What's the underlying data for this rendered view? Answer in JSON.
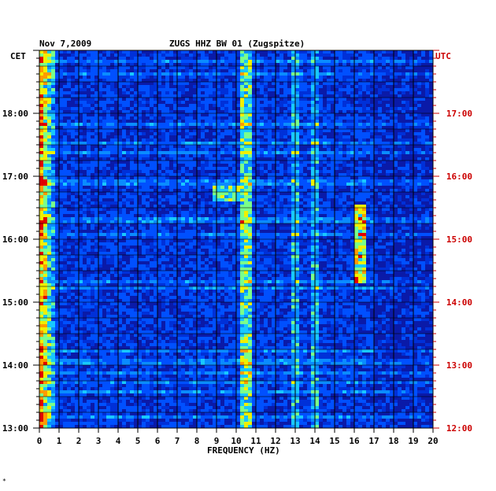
{
  "header": {
    "date": "Nov 7,2009",
    "station": "ZUGS HHZ BW 01 (Zugspitze)"
  },
  "footer": {
    "mark": "*"
  },
  "chart_data": {
    "type": "heatmap",
    "title": "ZUGS HHZ BW 01 (Zugspitze)",
    "date": "Nov 7,2009",
    "xlabel": "FREQUENCY (HZ)",
    "x_range": [
      0,
      20
    ],
    "x_ticks": [
      "0",
      "1",
      "2",
      "3",
      "4",
      "5",
      "6",
      "7",
      "8",
      "9",
      "10",
      "11",
      "12",
      "13",
      "14",
      "15",
      "16",
      "17",
      "18",
      "19",
      "20"
    ],
    "left_axis": {
      "label": "CET",
      "ticks": [
        "13:00",
        "14:00",
        "15:00",
        "16:00",
        "17:00",
        "18:00"
      ]
    },
    "right_axis": {
      "label": "UTC",
      "color": "#cc0000",
      "ticks": [
        "12:00",
        "13:00",
        "14:00",
        "15:00",
        "16:00",
        "17:00"
      ]
    },
    "colors": {
      "background": "#0a1aa8",
      "low": "#0d0d8a",
      "mid": "#0050ff",
      "high_cyan": "#18c8ff",
      "high_yellow": "#f0f000",
      "peak_red": "#e00000"
    },
    "grid": "on",
    "notable_features": [
      {
        "freq_hz": [
          0,
          0.8
        ],
        "description": "strong low-frequency energy throughout"
      },
      {
        "freq_hz": [
          10.3,
          10.8
        ],
        "description": "persistent narrow band"
      },
      {
        "freq_hz": [
          12.8,
          14.2
        ],
        "description": "intermittent bands"
      },
      {
        "freq_hz": [
          16.0,
          16.4
        ],
        "description": "burst around 15:00-16:30 CET"
      }
    ]
  }
}
